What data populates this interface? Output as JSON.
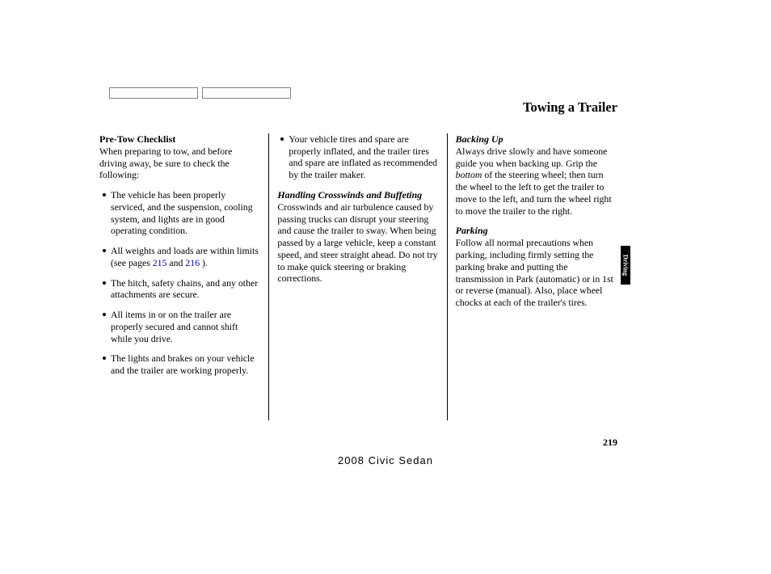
{
  "page_title": "Towing a Trailer",
  "side_tab": "Driving",
  "page_number": "219",
  "footer_model": "2008  Civic  Sedan",
  "link_color": "#0000c0",
  "text_color": "#000000",
  "background_color": "#ffffff",
  "col1": {
    "heading": "Pre-Tow Checklist",
    "intro": "When preparing to tow, and before driving away, be sure to check the following:",
    "bullets": [
      "The vehicle has been properly serviced, and the suspension, cooling system, and lights are in good operating condition.",
      "",
      "The hitch, safety chains, and any other attachments are secure.",
      "All items in or on the trailer are properly secured and cannot shift while you drive.",
      "The lights and brakes on your vehicle and the trailer are working properly."
    ],
    "bullet2_pre": "All weights and loads are within limits (see pages ",
    "bullet2_l1": "215",
    "bullet2_mid": " and ",
    "bullet2_l2": "216",
    "bullet2_post": " )."
  },
  "col2": {
    "bullet": "Your vehicle tires and spare are properly inflated, and the trailer tires and spare are inflated as recommended by the trailer maker.",
    "heading": "Handling Crosswinds and Buffeting",
    "body": "Crosswinds and air turbulence caused by passing trucks can disrupt your steering and cause the trailer to sway. When being passed by a large vehicle, keep a constant speed, and steer straight ahead. Do not try to make quick steering or braking corrections."
  },
  "col3": {
    "h1": "Backing Up",
    "b1_pre": "Always drive slowly and have someone guide you when backing up. Grip the ",
    "b1_italic": "bottom",
    "b1_post": " of the steering wheel; then turn the wheel to the left to get the trailer to move to the left, and turn the wheel right to move the trailer to the right.",
    "h2": "Parking",
    "b2": "Follow all normal precautions when parking, including firmly setting the parking brake and putting the transmission in Park (automatic) or in 1st or reverse (manual). Also, place wheel chocks at each of the trailer's tires."
  }
}
